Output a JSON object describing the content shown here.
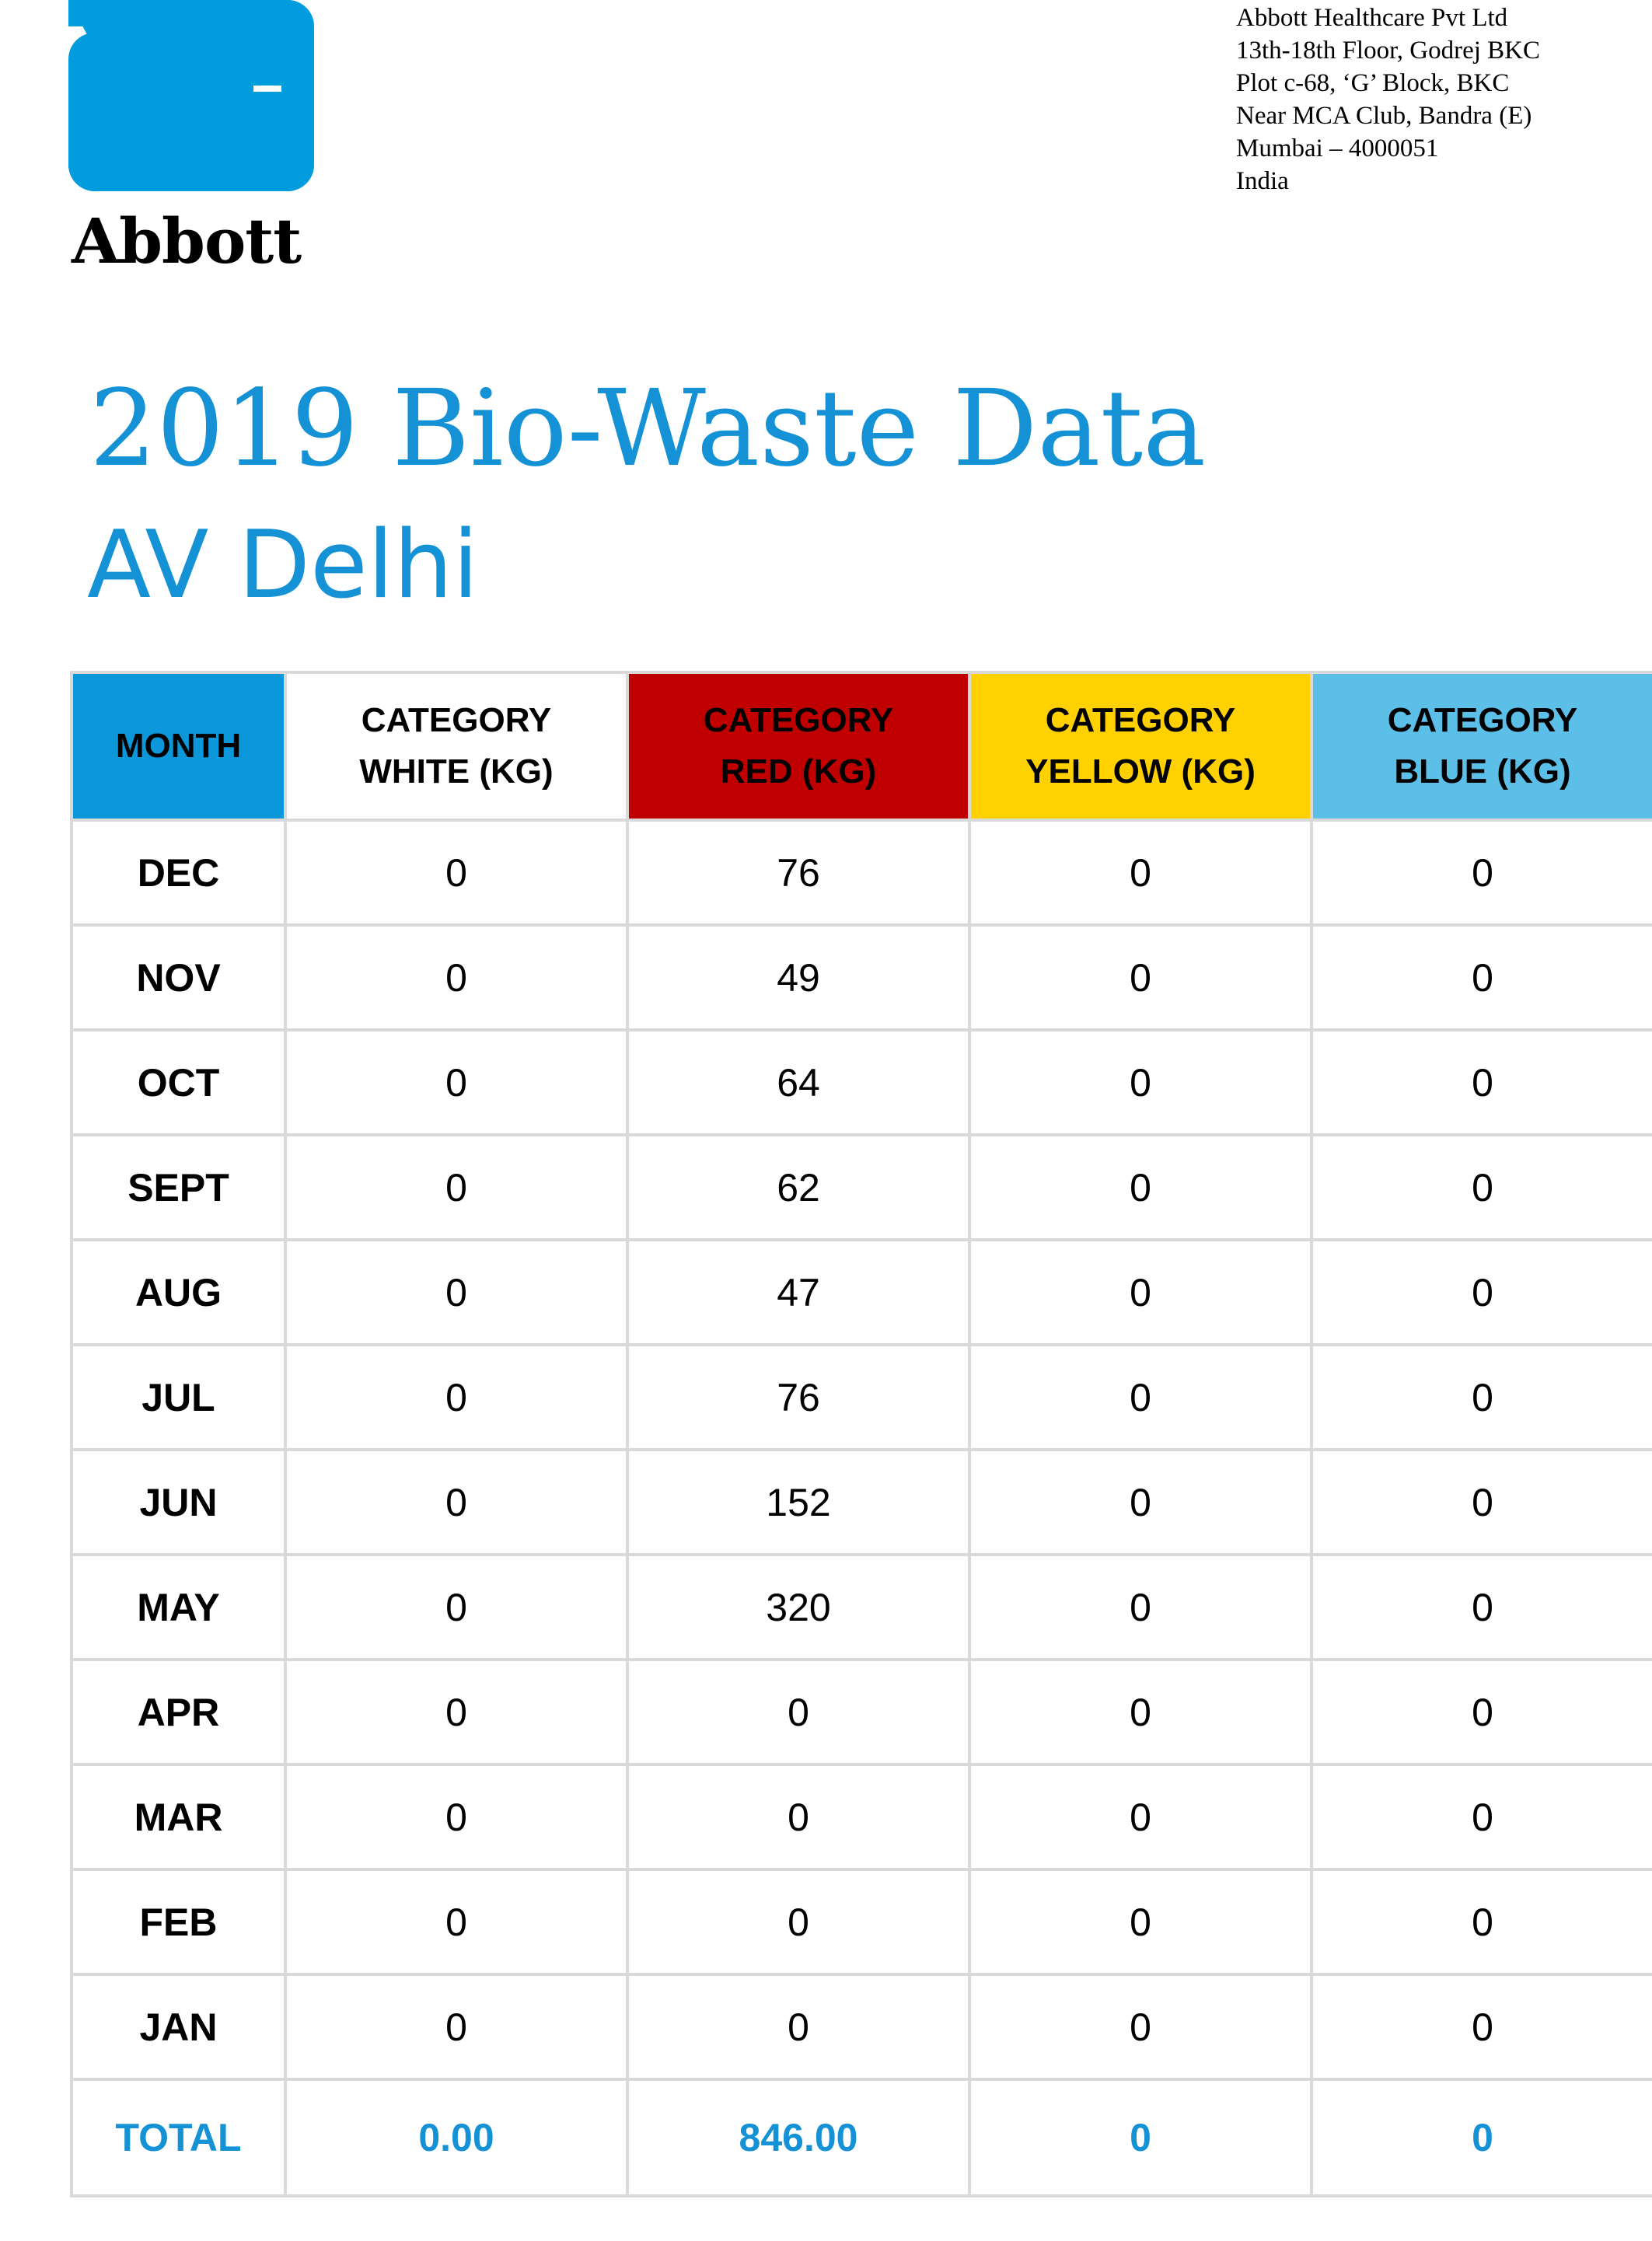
{
  "brand": {
    "logo_text": "Abbott",
    "logo_color": "#009cde"
  },
  "address": [
    "Abbott Healthcare Pvt Ltd",
    "13th-18th Floor, Godrej BKC",
    "Plot c-68, ‘G’ Block, BKC",
    "Near MCA Club, Bandra (E)",
    "Mumbai – 4000051",
    "India"
  ],
  "title": "2019 Bio-Waste Data",
  "subtitle": "AV Delhi",
  "table": {
    "headers": [
      {
        "line1": "MONTH",
        "line2": "",
        "color": "#0b97da"
      },
      {
        "line1": "CATEGORY",
        "line2": "WHITE (KG)",
        "color": "#ffffff"
      },
      {
        "line1": "CATEGORY",
        "line2": "RED (KG)",
        "color": "#c00000"
      },
      {
        "line1": "CATEGORY",
        "line2": "YELLOW (KG)",
        "color": "#ffd100"
      },
      {
        "line1": "CATEGORY",
        "line2": "BLUE (KG)",
        "color": "#5bbfe8"
      }
    ],
    "rows": [
      [
        "DEC",
        "0",
        "76",
        "0",
        "0"
      ],
      [
        "NOV",
        "0",
        "49",
        "0",
        "0"
      ],
      [
        "OCT",
        "0",
        "64",
        "0",
        "0"
      ],
      [
        "SEPT",
        "0",
        "62",
        "0",
        "0"
      ],
      [
        "AUG",
        "0",
        "47",
        "0",
        "0"
      ],
      [
        "JUL",
        "0",
        "76",
        "0",
        "0"
      ],
      [
        "JUN",
        "0",
        "152",
        "0",
        "0"
      ],
      [
        "MAY",
        "0",
        "320",
        "0",
        "0"
      ],
      [
        "APR",
        "0",
        "0",
        "0",
        "0"
      ],
      [
        "MAR",
        "0",
        "0",
        "0",
        "0"
      ],
      [
        "FEB",
        "0",
        "0",
        "0",
        "0"
      ],
      [
        "JAN",
        "0",
        "0",
        "0",
        "0"
      ]
    ],
    "total": [
      "TOTAL",
      "0.00",
      "846.00",
      "0",
      "0"
    ],
    "total_color": "#1592d6"
  }
}
